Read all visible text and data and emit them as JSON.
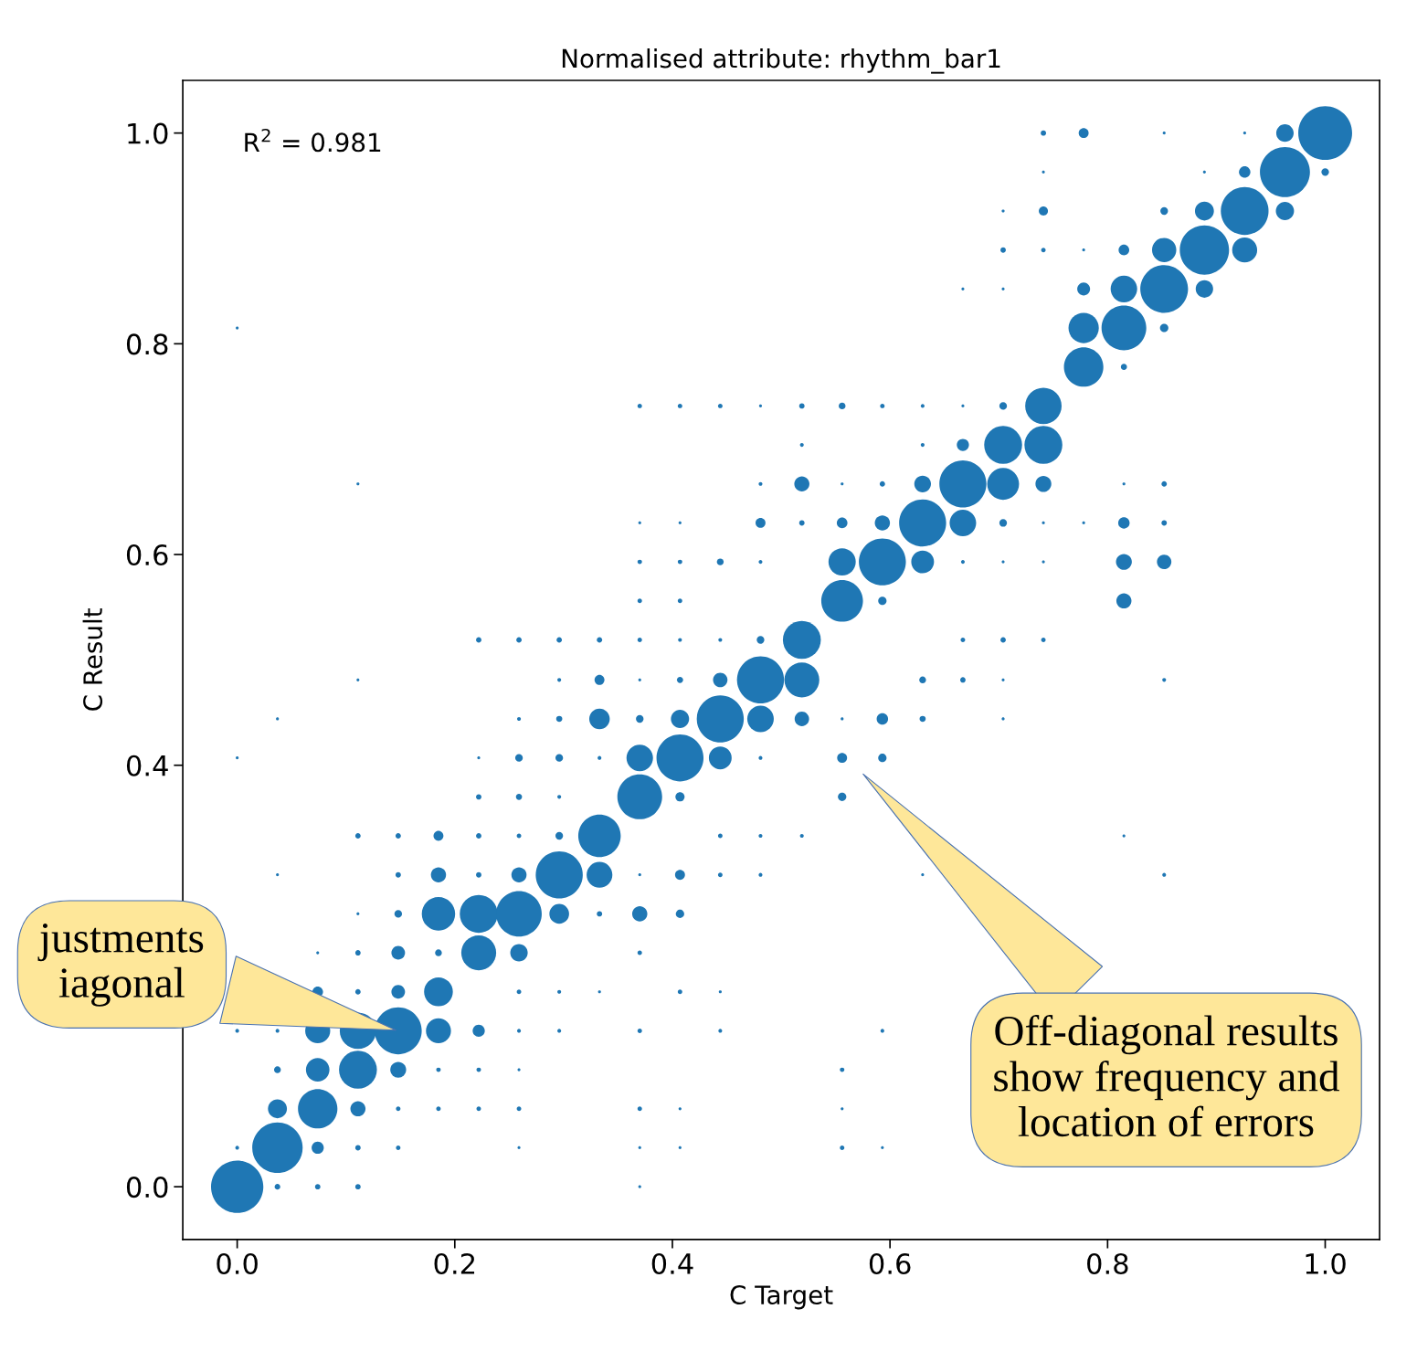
{
  "chart_data": {
    "type": "bubble",
    "title": "Normalised attribute: rhythm_bar1",
    "xlabel": "C Target",
    "ylabel": "C Result",
    "xlim": [
      -0.05,
      1.05
    ],
    "ylim": [
      -0.05,
      1.05
    ],
    "xticks": [
      {
        "value": 0,
        "label": "0.0"
      },
      {
        "value": 0.2,
        "label": "0.2"
      },
      {
        "value": 0.4,
        "label": "0.4"
      },
      {
        "value": 0.6,
        "label": "0.6"
      },
      {
        "value": 0.8,
        "label": "0.8"
      },
      {
        "value": 1,
        "label": "1.0"
      }
    ],
    "yticks": [
      {
        "value": 0,
        "label": "0.0"
      },
      {
        "value": 0.4,
        "label": "0.4"
      },
      {
        "value": 0.6,
        "label": "0.6"
      },
      {
        "value": 0.8,
        "label": "0.8"
      },
      {
        "value": 1,
        "label": "1.0"
      }
    ],
    "grid": false,
    "marker": "circle",
    "annotations": [
      "R$^{2}$ = 0.981",
      {
        "text": "justments\niagonal",
        "x": 0.148,
        "y": 0.148
      },
      "Off-diagonal results\nshow frequency and\nlocation of errors"
    ],
    "series": [
      {
        "color": "#1f77b4",
        "x": [
          0,
          0.037,
          0.074,
          0.111,
          0.37,
          0,
          0.037,
          0.074,
          0.111,
          0.148,
          0.259,
          0.37,
          0.407,
          0.556,
          0.593,
          0.037,
          0.074,
          0.111,
          0.148,
          0.185,
          0.222,
          0.259,
          0.37,
          0.407,
          0.556,
          0.037,
          0.074,
          0.111,
          0.148,
          0.185,
          0.222,
          0.259,
          0.556,
          0,
          0.037,
          0.074,
          0.111,
          0.148,
          0.185,
          0.222,
          0.259,
          0.296,
          0.37,
          0.444,
          0.593,
          0.074,
          0.111,
          0.148,
          0.185,
          0.259,
          0.296,
          0.333,
          0.407,
          0.444,
          0.074,
          0.111,
          0.148,
          0.185,
          0.222,
          0.259,
          0.37,
          0.111,
          0.148,
          0.185,
          0.222,
          0.259,
          0.296,
          0.333,
          0.37,
          0.407,
          0.037,
          0.148,
          0.185,
          0.222,
          0.259,
          0.296,
          0.333,
          0.37,
          0.407,
          0.444,
          0.481,
          0.63,
          0.852,
          0.111,
          0.148,
          0.185,
          0.222,
          0.259,
          0.296,
          0.333,
          0.444,
          0.481,
          0.519,
          0.815,
          0.222,
          0.259,
          0.296,
          0.37,
          0.407,
          0.556,
          0,
          0.222,
          0.259,
          0.296,
          0.333,
          0.37,
          0.407,
          0.444,
          0.481,
          0.556,
          0.593,
          0.037,
          0.259,
          0.296,
          0.333,
          0.37,
          0.407,
          0.444,
          0.481,
          0.519,
          0.556,
          0.593,
          0.63,
          0.704,
          0.111,
          0.296,
          0.333,
          0.37,
          0.407,
          0.444,
          0.481,
          0.519,
          0.63,
          0.667,
          0.704,
          0.852,
          0.222,
          0.259,
          0.296,
          0.333,
          0.37,
          0.407,
          0.444,
          0.481,
          0.519,
          0.667,
          0.704,
          0.741,
          0.37,
          0.407,
          0.556,
          0.593,
          0.815,
          0.37,
          0.407,
          0.444,
          0.481,
          0.556,
          0.593,
          0.63,
          0.667,
          0.704,
          0.741,
          0.815,
          0.852,
          0.37,
          0.407,
          0.481,
          0.519,
          0.556,
          0.593,
          0.63,
          0.667,
          0.704,
          0.741,
          0.778,
          0.815,
          0.852,
          0.111,
          0.481,
          0.519,
          0.556,
          0.593,
          0.63,
          0.667,
          0.704,
          0.741,
          0.815,
          0.852,
          0.519,
          0.63,
          0.667,
          0.704,
          0.741,
          0.37,
          0.407,
          0.444,
          0.481,
          0.519,
          0.556,
          0.593,
          0.63,
          0.667,
          0.704,
          0.741,
          0.778,
          0.815,
          0,
          0.778,
          0.815,
          0.852,
          0.667,
          0.704,
          0.778,
          0.815,
          0.852,
          0.889,
          0.704,
          0.741,
          0.778,
          0.815,
          0.852,
          0.889,
          0.926,
          0.704,
          0.741,
          0.852,
          0.889,
          0.926,
          0.963,
          0.741,
          0.889,
          0.926,
          0.963,
          1,
          0.741,
          0.778,
          0.852,
          0.926,
          0.963,
          1
        ],
        "values": [
          0,
          0,
          0,
          0,
          0,
          0.037,
          0.037,
          0.037,
          0.037,
          0.037,
          0.037,
          0.037,
          0.037,
          0.037,
          0.037,
          0.074,
          0.074,
          0.074,
          0.074,
          0.074,
          0.074,
          0.074,
          0.074,
          0.074,
          0.074,
          0.111,
          0.111,
          0.111,
          0.111,
          0.111,
          0.111,
          0.111,
          0.111,
          0.148,
          0.148,
          0.148,
          0.148,
          0.148,
          0.148,
          0.148,
          0.148,
          0.148,
          0.148,
          0.148,
          0.148,
          0.185,
          0.185,
          0.185,
          0.185,
          0.185,
          0.185,
          0.185,
          0.185,
          0.185,
          0.222,
          0.222,
          0.222,
          0.222,
          0.222,
          0.222,
          0.222,
          0.259,
          0.259,
          0.259,
          0.259,
          0.259,
          0.259,
          0.259,
          0.259,
          0.259,
          0.296,
          0.296,
          0.296,
          0.296,
          0.296,
          0.296,
          0.296,
          0.296,
          0.296,
          0.296,
          0.296,
          0.296,
          0.296,
          0.333,
          0.333,
          0.333,
          0.333,
          0.333,
          0.333,
          0.333,
          0.333,
          0.333,
          0.333,
          0.333,
          0.37,
          0.37,
          0.37,
          0.37,
          0.37,
          0.37,
          0.407,
          0.407,
          0.407,
          0.407,
          0.407,
          0.407,
          0.407,
          0.407,
          0.407,
          0.407,
          0.407,
          0.444,
          0.444,
          0.444,
          0.444,
          0.444,
          0.444,
          0.444,
          0.444,
          0.444,
          0.444,
          0.444,
          0.444,
          0.444,
          0.481,
          0.481,
          0.481,
          0.481,
          0.481,
          0.481,
          0.481,
          0.481,
          0.481,
          0.481,
          0.481,
          0.481,
          0.519,
          0.519,
          0.519,
          0.519,
          0.519,
          0.519,
          0.519,
          0.519,
          0.519,
          0.519,
          0.519,
          0.519,
          0.556,
          0.556,
          0.556,
          0.556,
          0.556,
          0.593,
          0.593,
          0.593,
          0.593,
          0.593,
          0.593,
          0.593,
          0.593,
          0.593,
          0.593,
          0.593,
          0.593,
          0.63,
          0.63,
          0.63,
          0.63,
          0.63,
          0.63,
          0.63,
          0.63,
          0.63,
          0.63,
          0.63,
          0.63,
          0.63,
          0.667,
          0.667,
          0.667,
          0.667,
          0.667,
          0.667,
          0.667,
          0.667,
          0.667,
          0.667,
          0.667,
          0.704,
          0.704,
          0.704,
          0.704,
          0.704,
          0.741,
          0.741,
          0.741,
          0.741,
          0.741,
          0.741,
          0.741,
          0.741,
          0.741,
          0.741,
          0.741,
          0.778,
          0.778,
          0.815,
          0.815,
          0.815,
          0.815,
          0.852,
          0.852,
          0.852,
          0.852,
          0.852,
          0.852,
          0.889,
          0.889,
          0.889,
          0.889,
          0.889,
          0.889,
          0.889,
          0.926,
          0.926,
          0.926,
          0.926,
          0.926,
          0.926,
          0.963,
          0.963,
          0.963,
          0.963,
          0.963,
          1,
          1,
          1,
          1,
          1,
          1
        ],
        "sizes": [
          0.944,
          0.011,
          0.01,
          0.01,
          0.003,
          0.005,
          0.877,
          0.051,
          0.01,
          0.007,
          0.003,
          0.003,
          0.003,
          0.007,
          0.003,
          0.124,
          0.536,
          0.079,
          0.007,
          0.007,
          0.007,
          0.007,
          0.007,
          0.003,
          0.003,
          0.016,
          0.191,
          0.496,
          0.087,
          0.007,
          0.007,
          0.003,
          0.007,
          0.005,
          0.005,
          0.216,
          0.457,
          0.763,
          0.216,
          0.051,
          0.005,
          0.005,
          0.007,
          0.005,
          0.005,
          0.039,
          0.01,
          0.064,
          0.286,
          0.007,
          0.005,
          0.003,
          0.007,
          0.003,
          0.003,
          0.01,
          0.064,
          0.016,
          0.42,
          0.105,
          0.007,
          0.003,
          0.02,
          0.384,
          0.496,
          0.714,
          0.134,
          0.01,
          0.079,
          0.024,
          0.003,
          0.01,
          0.079,
          0.01,
          0.079,
          0.763,
          0.229,
          0.003,
          0.034,
          0.007,
          0.005,
          0.003,
          0.005,
          0.01,
          0.01,
          0.034,
          0.01,
          0.007,
          0.02,
          0.622,
          0.007,
          0.005,
          0.005,
          0.003,
          0.01,
          0.013,
          0.005,
          0.691,
          0.029,
          0.024,
          0.003,
          0.003,
          0.02,
          0.02,
          0.005,
          0.243,
          0.763,
          0.179,
          0.005,
          0.034,
          0.024,
          0.003,
          0.005,
          0.013,
          0.145,
          0.02,
          0.114,
          0.763,
          0.243,
          0.072,
          0.003,
          0.045,
          0.013,
          0.003,
          0.003,
          0.005,
          0.034,
          0.003,
          0.013,
          0.072,
          0.763,
          0.42,
          0.016,
          0.01,
          0.003,
          0.005,
          0.01,
          0.01,
          0.01,
          0.01,
          0.007,
          0.005,
          0.005,
          0.02,
          0.496,
          0.007,
          0.01,
          0.007,
          0.007,
          0.007,
          0.6,
          0.024,
          0.079,
          0.007,
          0.007,
          0.016,
          0.005,
          0.257,
          0.763,
          0.179,
          0.005,
          0.003,
          0.003,
          0.087,
          0.072,
          0.003,
          0.003,
          0.034,
          0.01,
          0.039,
          0.079,
          0.763,
          0.243,
          0.02,
          0.003,
          0.003,
          0.045,
          0.01,
          0.003,
          0.005,
          0.079,
          0.003,
          0.01,
          0.096,
          0.763,
          0.35,
          0.087,
          0.003,
          0.01,
          0.005,
          0.005,
          0.051,
          0.496,
          0.496,
          0.007,
          0.007,
          0.007,
          0.003,
          0.01,
          0.016,
          0.007,
          0.005,
          0.003,
          0.02,
          0.457,
          0.536,
          0.013,
          0.003,
          0.317,
          0.691,
          0.024,
          0.003,
          0.003,
          0.057,
          0.243,
          0.787,
          0.105,
          0.01,
          0.007,
          0.003,
          0.039,
          0.203,
          0.838,
          0.216,
          0.003,
          0.029,
          0.02,
          0.124,
          0.787,
          0.114,
          0.003,
          0.003,
          0.045,
          0.864,
          0.02,
          0.01,
          0.034,
          0.003,
          0.003,
          0.105,
          1
        ]
      }
    ]
  }
}
